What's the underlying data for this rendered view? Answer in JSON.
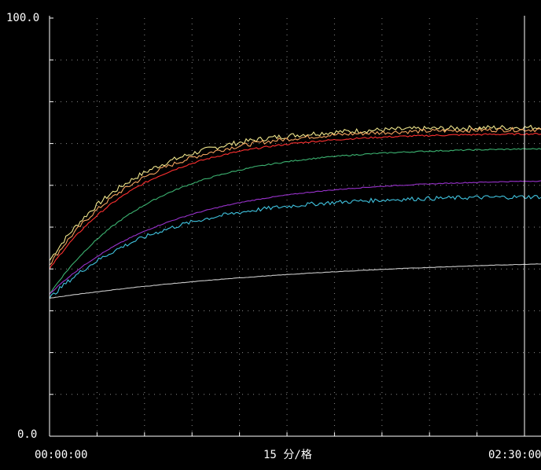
{
  "chart_data": {
    "type": "line",
    "title": "",
    "ylabel": "",
    "y_top_label": "100.0",
    "y_bottom_label": "0.0",
    "ylim": [
      0,
      100
    ],
    "x_start_label": "00:00:00",
    "x_mid_label": "15 分/格",
    "x_end_label": "02:30:00",
    "x_division_minutes": 15,
    "x_range_minutes": [
      0,
      150
    ],
    "grid": true,
    "background": "#000000",
    "axis_color": "#ffffff",
    "series": [
      {
        "color": "#f0e68c",
        "start": 42,
        "end": 74.0,
        "tau": 28,
        "noise": 0.6
      },
      {
        "color": "#f4a460",
        "start": 41,
        "end": 73.5,
        "tau": 29,
        "noise": 0.5
      },
      {
        "color": "#ff3030",
        "start": 40,
        "end": 72.5,
        "tau": 30,
        "noise": 0.2
      },
      {
        "color": "#3cb371",
        "start": 34,
        "end": 69.0,
        "tau": 32,
        "noise": 0.15
      },
      {
        "color": "#9932cc",
        "start": 34,
        "end": 61.5,
        "tau": 38,
        "noise": 0.1
      },
      {
        "color": "#40c4e0",
        "start": 33,
        "end": 57.5,
        "tau": 33,
        "noise": 0.5
      },
      {
        "color": "#c8c8c8",
        "start": 33,
        "end": 43.0,
        "tau": 90,
        "noise": 0.05
      }
    ]
  }
}
